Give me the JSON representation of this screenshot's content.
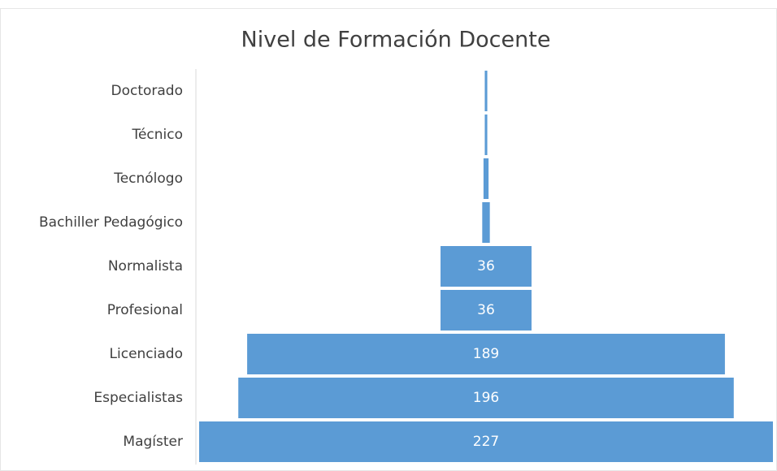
{
  "chart_data": {
    "type": "funnel",
    "title": "Nivel de Formación Docente",
    "categories": [
      "Doctorado",
      "Técnico",
      "Tecnólogo",
      "Bachiller Pedagógico",
      "Normalista",
      "Profesional",
      "Licenciado",
      "Especialistas",
      "Magíster"
    ],
    "values": [
      1,
      1,
      2,
      3,
      36,
      36,
      189,
      196,
      227
    ],
    "value_labels": [
      null,
      null,
      null,
      null,
      "36",
      "36",
      "189",
      "196",
      "227"
    ],
    "color": "#5b9bd5"
  }
}
